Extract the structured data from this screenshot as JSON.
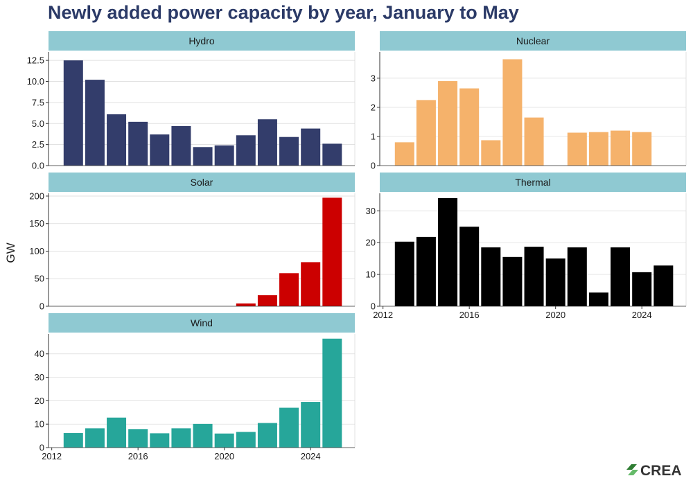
{
  "title": "Newly added power capacity by year, January to May",
  "brand": "CREA",
  "colors": {
    "title": "#2b3a67",
    "strip": "#8fc9d2",
    "grid": "#d9d9d9",
    "Hydro": "#333d6b",
    "Nuclear": "#f5b26b",
    "Solar": "#cc0000",
    "Thermal": "#000000",
    "Wind": "#26a69a"
  },
  "chart_data": {
    "type": "bar",
    "ylabel": "GW",
    "xlabel": "",
    "x_ticks": [
      "2012",
      "2016",
      "2020",
      "2024"
    ],
    "panels": [
      {
        "name": "Hydro",
        "x": [
          2013,
          2014,
          2015,
          2016,
          2017,
          2018,
          2019,
          2020,
          2021,
          2022,
          2023,
          2024,
          2025
        ],
        "values": [
          12.5,
          10.2,
          6.1,
          5.2,
          3.7,
          4.7,
          2.2,
          2.4,
          3.6,
          5.5,
          3.4,
          4.4,
          2.6
        ],
        "ylim": [
          0,
          13.5
        ],
        "y_ticks": [
          "0.0",
          "2.5",
          "5.0",
          "7.5",
          "10.0",
          "12.5"
        ]
      },
      {
        "name": "Nuclear",
        "x": [
          2013,
          2014,
          2015,
          2016,
          2017,
          2018,
          2019,
          2021,
          2022,
          2023,
          2024
        ],
        "values": [
          0.8,
          2.25,
          2.9,
          2.65,
          0.87,
          3.65,
          1.65,
          1.13,
          1.15,
          1.2,
          1.15
        ],
        "ylim": [
          0,
          3.9
        ],
        "y_ticks": [
          "0",
          "1",
          "2",
          "3"
        ]
      },
      {
        "name": "Solar",
        "x": [
          2013,
          2014,
          2015,
          2016,
          2017,
          2018,
          2019,
          2020,
          2021,
          2022,
          2023,
          2024,
          2025
        ],
        "values": [
          0,
          0,
          0,
          0,
          0,
          0,
          0,
          0,
          5,
          20,
          60,
          80,
          197
        ],
        "ylim": [
          0,
          205
        ],
        "y_ticks": [
          "0",
          "50",
          "100",
          "150",
          "200"
        ]
      },
      {
        "name": "Thermal",
        "x": [
          2013,
          2014,
          2015,
          2016,
          2017,
          2018,
          2019,
          2020,
          2021,
          2022,
          2023,
          2024,
          2025
        ],
        "values": [
          20.3,
          21.8,
          34,
          25,
          18.5,
          15.5,
          18.7,
          15,
          18.5,
          4.3,
          18.5,
          10.7,
          12.8
        ],
        "ylim": [
          0,
          35.5
        ],
        "y_ticks": [
          "0",
          "10",
          "20",
          "30"
        ]
      },
      {
        "name": "Wind",
        "x": [
          2013,
          2014,
          2015,
          2016,
          2017,
          2018,
          2019,
          2020,
          2021,
          2022,
          2023,
          2024,
          2025
        ],
        "values": [
          6.2,
          8.2,
          12.8,
          7.9,
          6.1,
          8.2,
          10.1,
          6.0,
          6.7,
          10.5,
          17,
          19.5,
          46.5
        ],
        "ylim": [
          0,
          48.5
        ],
        "y_ticks": [
          "0",
          "10",
          "20",
          "30",
          "40"
        ]
      }
    ]
  }
}
